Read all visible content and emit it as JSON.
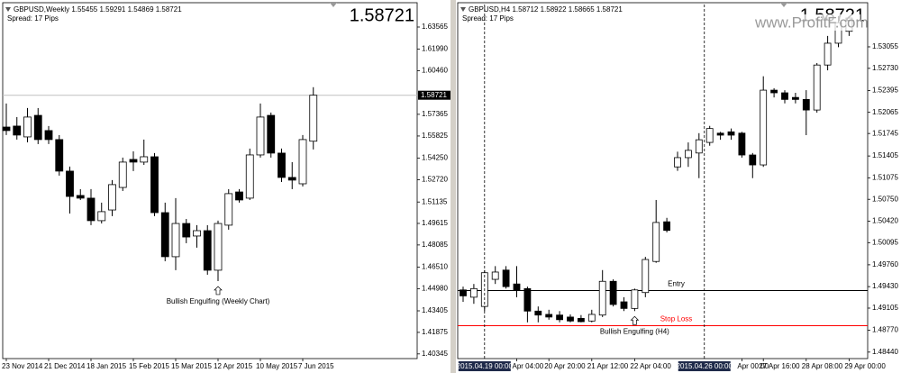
{
  "chart_data": [
    {
      "type": "candlestick",
      "header": "GBPUSD,Weekly  1.55455 1.59291 1.54869 1.58721",
      "spread": "Spread: 17 Pips",
      "last_price": 1.58721,
      "show_price_line": true,
      "categories": [
        "23 Nov 2014",
        null,
        null,
        null,
        "21 Dec 2014",
        null,
        null,
        null,
        "18 Jan 2015",
        null,
        null,
        null,
        "15 Feb 2015",
        null,
        null,
        null,
        "15 Mar 2015",
        null,
        null,
        null,
        "12 Apr 2015",
        null,
        null,
        null,
        "10 May 2015",
        null,
        null,
        null,
        "7 Jun 2015",
        null
      ],
      "open": [
        1.5646,
        1.5653,
        1.5576,
        1.5729,
        1.5621,
        1.5557,
        1.5333,
        1.516,
        1.5141,
        1.4981,
        1.5057,
        1.5217,
        1.5416,
        1.5397,
        1.5435,
        1.5038,
        1.4725,
        1.4961,
        1.4872,
        1.491,
        1.4629,
        1.4949,
        1.5185,
        1.5141,
        1.5448,
        1.5729,
        1.5461,
        1.5288,
        1.5243,
        1.55455
      ],
      "high": [
        1.5813,
        1.5717,
        1.5781,
        1.5781,
        1.5653,
        1.5589,
        1.5365,
        1.5205,
        1.5205,
        1.5109,
        1.5269,
        1.5429,
        1.5473,
        1.5557,
        1.5461,
        1.5109,
        1.5141,
        1.4993,
        1.4949,
        1.4949,
        1.4981,
        1.5205,
        1.5205,
        1.5493,
        1.5813,
        1.5749,
        1.5493,
        1.5397,
        1.5589,
        1.59291
      ],
      "low": [
        1.5589,
        1.5557,
        1.5537,
        1.5525,
        1.5525,
        1.5301,
        1.5032,
        1.5128,
        1.4949,
        1.4961,
        1.5013,
        1.5192,
        1.5333,
        1.5377,
        1.5013,
        1.4693,
        1.4629,
        1.4821,
        1.4789,
        1.4597,
        1.4552,
        1.4917,
        1.5109,
        1.5128,
        1.5429,
        1.5429,
        1.5256,
        1.5205,
        1.5224,
        1.54869
      ],
      "close": [
        1.5621,
        1.5589,
        1.5717,
        1.5557,
        1.5557,
        1.5333,
        1.5153,
        1.5141,
        1.4981,
        1.5045,
        1.5237,
        1.5397,
        1.5397,
        1.5435,
        1.5038,
        1.4725,
        1.4961,
        1.4865,
        1.491,
        1.4629,
        1.4961,
        1.5173,
        1.5128,
        1.5448,
        1.5717,
        1.5461,
        1.5288,
        1.5269,
        1.5557,
        1.58721
      ],
      "ylim": [
        1.40013,
        1.65165
      ],
      "yticks": [
        1.63565,
        {
          "value": 1.6199,
          "label": "1.61990"
        },
        {
          "value": 1.6046,
          "label": "1.60460"
        },
        1.57365,
        1.55825,
        {
          "value": 1.5425,
          "label": "1.54250"
        },
        {
          "value": 1.5272,
          "label": "1.52720"
        },
        1.51135,
        1.49615,
        1.48085,
        {
          "value": 1.4651,
          "label": "1.46510"
        },
        {
          "value": 1.4498,
          "label": "1.44980"
        },
        1.43405,
        1.41875,
        1.40345
      ],
      "annotations": [
        {
          "text": "Bullish Engulfing (Weekly Chart)",
          "index": 20
        }
      ]
    },
    {
      "type": "candlestick",
      "header": "GBPUSD,H4  1.58712 1.58922 1.58665 1.58721",
      "spread": "Spread: 17 Pips",
      "last_price": 1.58721,
      "watermark": "www.ProfitF.com",
      "categories": [
        null,
        null,
        null,
        null,
        null,
        "Apr 04:00",
        null,
        null,
        "20 Apr 20:00",
        null,
        null,
        null,
        "21 Apr 12:00",
        null,
        null,
        null,
        "22 Apr 04:00",
        null,
        null,
        null,
        null,
        null,
        null,
        null,
        null,
        null,
        "Apr 00:00",
        null,
        "27 Apr 16:00",
        null,
        null,
        null,
        "28 Apr 08:00",
        null,
        null,
        null,
        "29 Apr 00:00"
      ],
      "open": [
        1.4938,
        1.4927,
        1.4913,
        1.4954,
        1.4968,
        1.4947,
        1.494,
        1.4906,
        1.4901,
        1.49,
        1.4897,
        1.4895,
        1.4891,
        1.49,
        1.4951,
        1.492,
        1.491,
        1.4934,
        1.4981,
        1.5041,
        1.5124,
        1.5138,
        1.5145,
        1.5161,
        1.5175,
        1.5177,
        1.5175,
        1.5142,
        1.5127,
        1.524,
        1.5236,
        1.5229,
        1.5226,
        1.521,
        1.5278,
        1.5311,
        1.5329
      ],
      "high": [
        1.4943,
        1.4947,
        1.4968,
        1.4974,
        1.4974,
        1.4974,
        1.4943,
        1.4913,
        1.4908,
        1.4906,
        1.4901,
        1.49,
        1.4908,
        1.4968,
        1.4954,
        1.4927,
        1.494,
        1.4988,
        1.5074,
        1.5047,
        1.5147,
        1.5161,
        1.5175,
        1.5186,
        1.5177,
        1.5182,
        1.5177,
        1.5145,
        1.5261,
        1.5243,
        1.524,
        1.5236,
        1.524,
        1.5281,
        1.5322,
        1.5352,
        1.5352
      ],
      "low": [
        1.492,
        1.4917,
        1.4906,
        1.4947,
        1.494,
        1.4927,
        1.4889,
        1.4889,
        1.4893,
        1.4889,
        1.4889,
        1.4889,
        1.4889,
        1.4897,
        1.4913,
        1.4906,
        1.4906,
        1.4927,
        1.4979,
        1.5025,
        1.5118,
        1.5124,
        1.5107,
        1.5156,
        1.5165,
        1.5165,
        1.5138,
        1.5107,
        1.5124,
        1.5229,
        1.522,
        1.522,
        1.5172,
        1.5206,
        1.527,
        1.5305,
        1.5322
      ],
      "close": [
        1.4929,
        1.494,
        1.4964,
        1.4965,
        1.4943,
        1.4938,
        1.4906,
        1.49,
        1.4897,
        1.4893,
        1.4891,
        1.489,
        1.4901,
        1.4951,
        1.4916,
        1.491,
        1.4938,
        1.4984,
        1.504,
        1.5028,
        1.5138,
        1.5149,
        1.5165,
        1.5182,
        1.5172,
        1.5172,
        1.5142,
        1.5127,
        1.524,
        1.5236,
        1.5226,
        1.5226,
        1.521,
        1.5278,
        1.5311,
        1.5342,
        1.5349
      ],
      "ylim": [
        1.48342,
        1.53695
      ],
      "yticks": [
        1.53055,
        {
          "value": 1.5273,
          "label": "1.52730"
        },
        1.52395,
        1.52065,
        1.51745,
        1.51405,
        1.51075,
        {
          "value": 1.5075,
          "label": "1.50750"
        },
        {
          "value": 1.5042,
          "label": "1.50420"
        },
        1.50095,
        {
          "value": 1.4976,
          "label": "1.49760"
        },
        {
          "value": 1.4943,
          "label": "1.49430"
        },
        1.49105,
        {
          "value": 1.4877,
          "label": "1.48770"
        },
        {
          "value": 1.4844,
          "label": "1.48440"
        }
      ],
      "hlines": [
        {
          "label": "Entry",
          "value": 1.4937,
          "color": "#000000"
        },
        {
          "label": "Stop Loss",
          "value": 1.4884,
          "color": "#ff0000"
        }
      ],
      "vlines": [
        {
          "x": 2,
          "label": "2015.04.19 00:00"
        },
        {
          "x": 22.5,
          "label": "2015.04.26 00:00"
        }
      ],
      "annotations": [
        {
          "text": "Bullish Engulfing (H4)",
          "index": 16
        }
      ]
    }
  ]
}
